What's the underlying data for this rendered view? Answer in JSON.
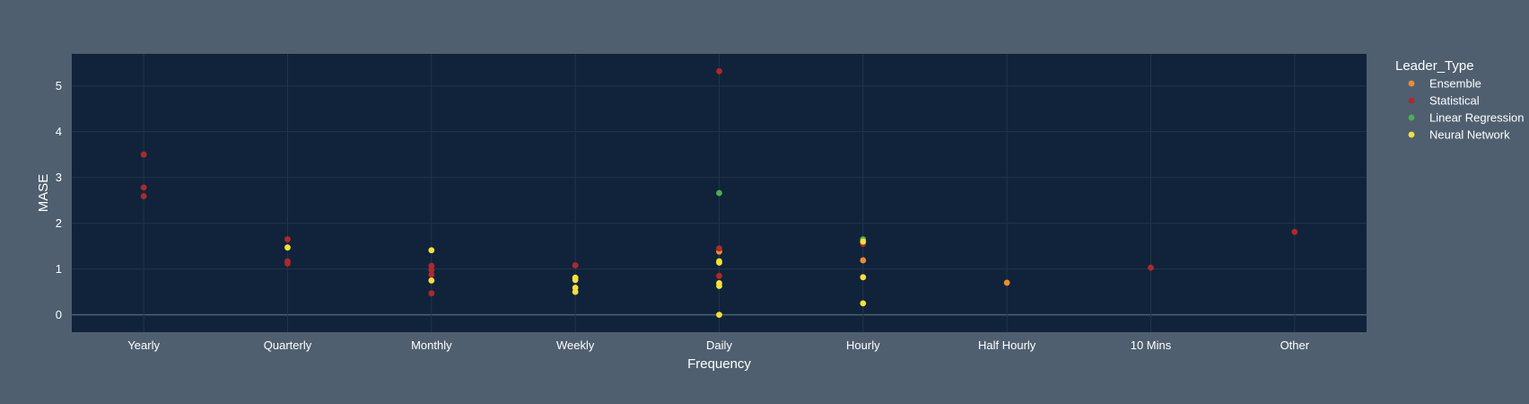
{
  "chart_data": {
    "type": "scatter",
    "xlabel": "Frequency",
    "ylabel": "MASE",
    "categories": [
      "Yearly",
      "Quarterly",
      "Monthly",
      "Weekly",
      "Daily",
      "Hourly",
      "Half Hourly",
      "10 Mins",
      "Other"
    ],
    "ylim": [
      -0.38,
      5.7
    ],
    "yticks": [
      0,
      1,
      2,
      3,
      4,
      5
    ],
    "grid": true,
    "legend": {
      "title": "Leader_Type",
      "position": "right"
    },
    "series": [
      {
        "name": "Ensemble",
        "color": "#f08c30",
        "points": [
          {
            "x": "Hourly",
            "y": 1.19
          },
          {
            "x": "Half Hourly",
            "y": 0.7
          },
          {
            "x": "Daily",
            "y": 1.38
          }
        ]
      },
      {
        "name": "Statistical",
        "color": "#b0282a",
        "points": [
          {
            "x": "Yearly",
            "y": 3.5
          },
          {
            "x": "Yearly",
            "y": 2.78
          },
          {
            "x": "Yearly",
            "y": 2.59
          },
          {
            "x": "Quarterly",
            "y": 1.65
          },
          {
            "x": "Quarterly",
            "y": 1.17
          },
          {
            "x": "Quarterly",
            "y": 1.12
          },
          {
            "x": "Monthly",
            "y": 1.07
          },
          {
            "x": "Monthly",
            "y": 0.98
          },
          {
            "x": "Monthly",
            "y": 0.88
          },
          {
            "x": "Monthly",
            "y": 0.74
          },
          {
            "x": "Monthly",
            "y": 0.47
          },
          {
            "x": "Weekly",
            "y": 1.08
          },
          {
            "x": "Daily",
            "y": 5.32
          },
          {
            "x": "Daily",
            "y": 1.45
          },
          {
            "x": "Daily",
            "y": 0.85
          },
          {
            "x": "Hourly",
            "y": 1.55
          },
          {
            "x": "10 Mins",
            "y": 1.03
          },
          {
            "x": "Other",
            "y": 1.81
          }
        ]
      },
      {
        "name": "Linear Regression",
        "color": "#4caf50",
        "points": [
          {
            "x": "Daily",
            "y": 2.66
          },
          {
            "x": "Hourly",
            "y": 1.65
          }
        ]
      },
      {
        "name": "Neural Network",
        "color": "#f5e03a",
        "points": [
          {
            "x": "Quarterly",
            "y": 1.47
          },
          {
            "x": "Monthly",
            "y": 1.41
          },
          {
            "x": "Monthly",
            "y": 0.75
          },
          {
            "x": "Weekly",
            "y": 0.81
          },
          {
            "x": "Weekly",
            "y": 0.76
          },
          {
            "x": "Weekly",
            "y": 0.59
          },
          {
            "x": "Weekly",
            "y": 0.5
          },
          {
            "x": "Daily",
            "y": 1.17
          },
          {
            "x": "Daily",
            "y": 1.14
          },
          {
            "x": "Daily",
            "y": 0.69
          },
          {
            "x": "Daily",
            "y": 0.63
          },
          {
            "x": "Daily",
            "y": 0.0
          },
          {
            "x": "Hourly",
            "y": 1.6
          },
          {
            "x": "Hourly",
            "y": 0.82
          },
          {
            "x": "Hourly",
            "y": 0.25
          }
        ]
      }
    ]
  }
}
